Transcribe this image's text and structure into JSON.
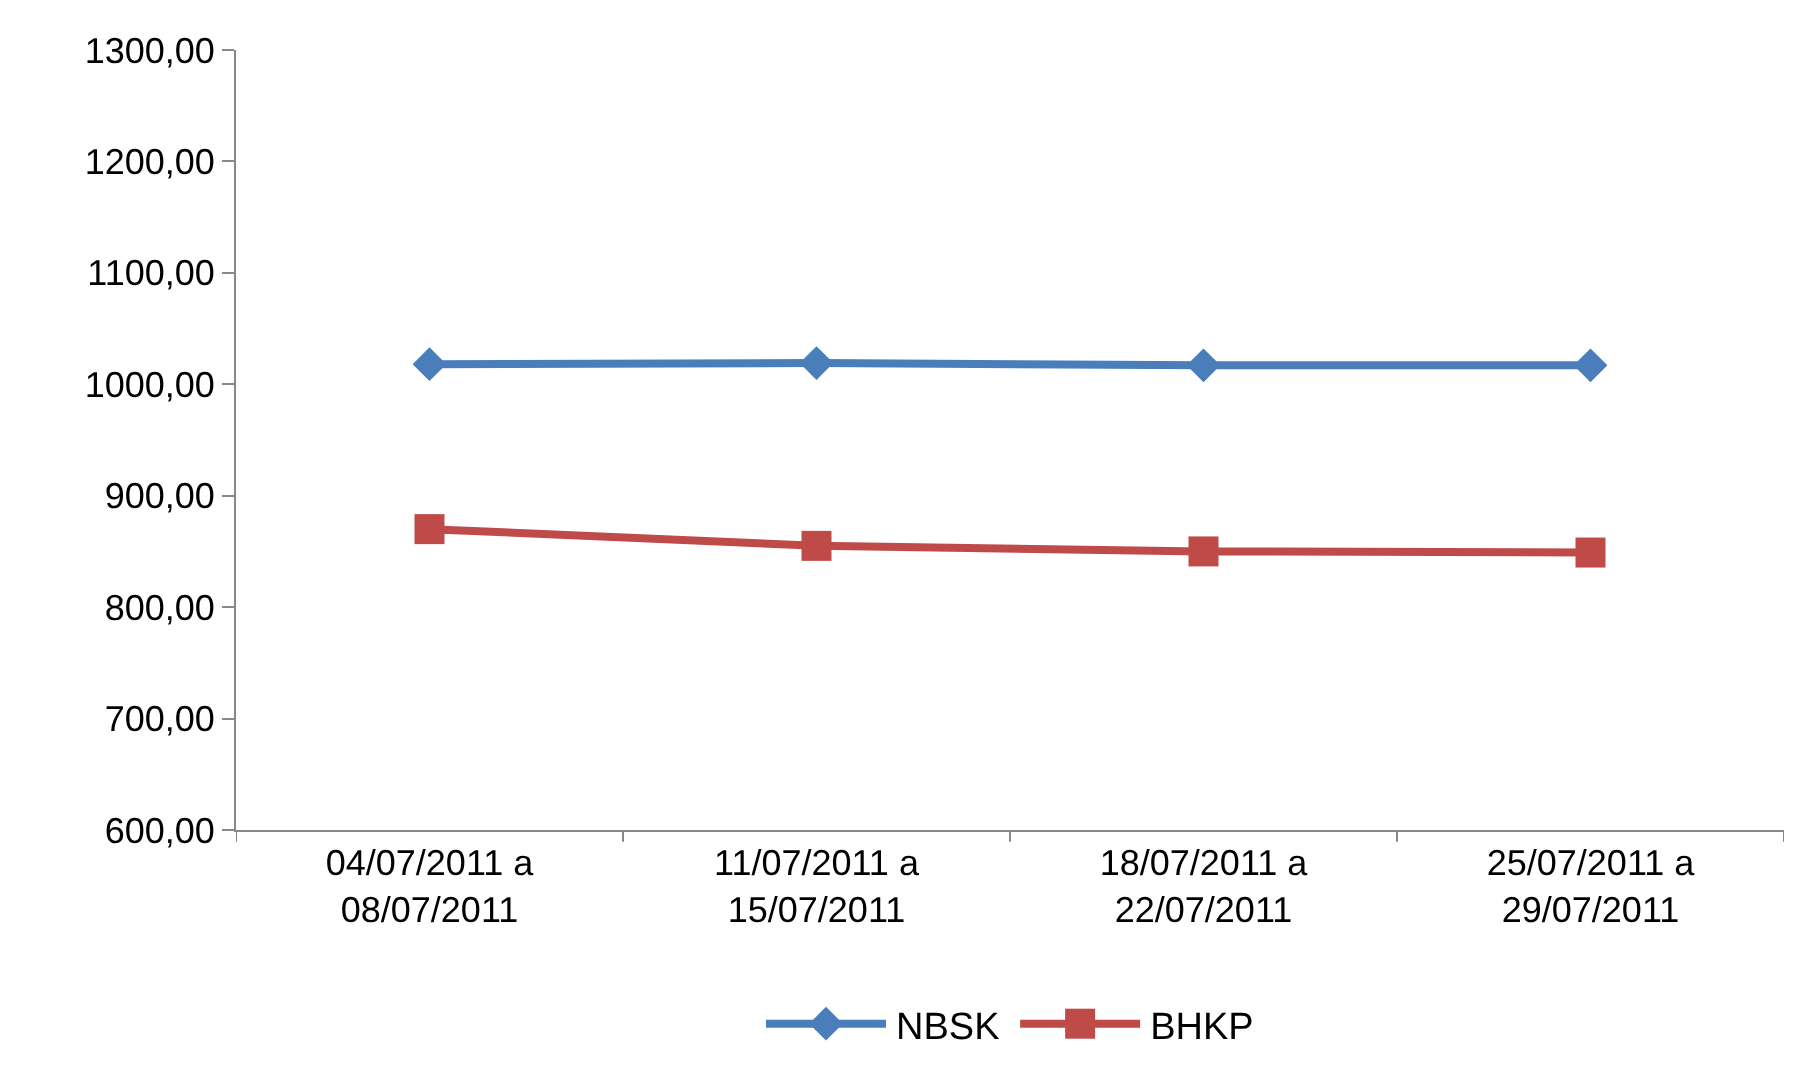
{
  "chart_data": {
    "type": "line",
    "categories": [
      "04/07/2011 a\n08/07/2011",
      "11/07/2011 a\n15/07/2011",
      "18/07/2011 a\n22/07/2011",
      "25/07/2011 a\n29/07/2011"
    ],
    "series": [
      {
        "name": "NBSK",
        "color": "#4a7ebb",
        "marker": "diamond",
        "values": [
          1018,
          1019,
          1017,
          1017
        ]
      },
      {
        "name": "BHKP",
        "color": "#be4b48",
        "marker": "square",
        "values": [
          870,
          855,
          850,
          849
        ]
      }
    ],
    "ylim": [
      600,
      1300
    ],
    "yticks": [
      {
        "value": 600,
        "label": "600,00"
      },
      {
        "value": 700,
        "label": "700,00"
      },
      {
        "value": 800,
        "label": "800,00"
      },
      {
        "value": 900,
        "label": "900,00"
      },
      {
        "value": 1000,
        "label": "1000,00"
      },
      {
        "value": 1100,
        "label": "1100,00"
      },
      {
        "value": 1200,
        "label": "1200,00"
      },
      {
        "value": 1300,
        "label": "1300,00"
      }
    ],
    "grid": false,
    "legend": "bottom"
  }
}
